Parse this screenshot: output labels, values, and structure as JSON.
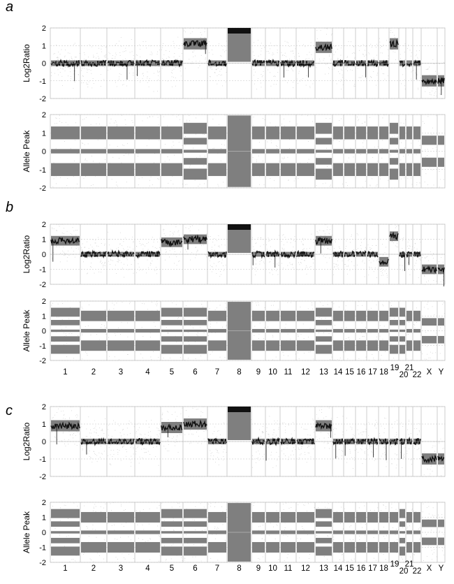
{
  "chromosomes": [
    "1",
    "2",
    "3",
    "4",
    "5",
    "6",
    "7",
    "8",
    "9",
    "10",
    "11",
    "12",
    "13",
    "14",
    "15",
    "16",
    "17",
    "18",
    "19",
    "20",
    "21",
    "22",
    "X",
    "Y"
  ],
  "chromosome_labels": [
    "1",
    "2",
    "3",
    "4",
    "5",
    "6",
    "7",
    "8",
    "9",
    "10",
    "11",
    "12",
    "13",
    "14",
    "15",
    "16",
    "17",
    "18",
    "19",
    "20",
    "21",
    "22",
    "X",
    "Y"
  ],
  "colors": {
    "data": "#111111",
    "spread": "#7f7f7f",
    "noise": "#c8c8c8",
    "grid": "#c0c0c0",
    "baseline": "#a8a8a8"
  },
  "chart_data": [
    {
      "panel": "a",
      "type": "scatter",
      "subplot": "top",
      "ylabel": "Log2Ratio",
      "ylim": [
        -2,
        2
      ],
      "yticks": [
        -2,
        -1,
        0,
        1,
        2
      ],
      "grid": true,
      "series": [
        {
          "values": [
            0,
            0,
            0,
            0,
            0,
            1.1,
            0,
            1.8,
            0,
            0,
            0,
            0,
            0.9,
            0,
            0,
            0,
            0,
            0,
            1.1,
            0,
            0,
            0,
            -1,
            -1
          ]
        }
      ]
    },
    {
      "panel": "a",
      "type": "scatter",
      "subplot": "bottom",
      "ylabel": "Allele Peak",
      "ylim": [
        -2,
        2
      ],
      "yticks": [
        -2,
        -1,
        0,
        1,
        2
      ],
      "grid": true,
      "series": [
        {
          "values": [
            "het",
            "het",
            "het",
            "het",
            "het",
            "split",
            "het",
            "wide",
            "het",
            "het",
            "het",
            "het",
            "split",
            "het",
            "het",
            "het",
            "het",
            "het",
            "split",
            "het",
            "het",
            "het",
            "hemi",
            "hemi"
          ]
        }
      ]
    },
    {
      "panel": "b",
      "type": "scatter",
      "subplot": "top",
      "ylabel": "Log2Ratio",
      "ylim": [
        -2,
        2
      ],
      "yticks": [
        -2,
        -1,
        0,
        1,
        2
      ],
      "grid": true,
      "series": [
        {
          "values": [
            0.9,
            0,
            0,
            0,
            0.8,
            1.0,
            0,
            1.8,
            0,
            0,
            0,
            0,
            0.9,
            0,
            0,
            0,
            0,
            -0.5,
            1.2,
            0,
            0,
            0,
            -1,
            -1
          ]
        }
      ]
    },
    {
      "panel": "b",
      "type": "scatter",
      "subplot": "bottom",
      "ylabel": "Allele Peak",
      "ylim": [
        -2,
        2
      ],
      "yticks": [
        -2,
        -1,
        0,
        1,
        2
      ],
      "grid": true,
      "series": [
        {
          "values": [
            "split",
            "het",
            "het",
            "het",
            "split",
            "split",
            "het",
            "wide",
            "het",
            "het",
            "het",
            "het",
            "split",
            "het",
            "het",
            "het",
            "het",
            "het",
            "split",
            "split",
            "het",
            "het",
            "hemi",
            "hemi"
          ]
        }
      ]
    },
    {
      "panel": "c",
      "type": "scatter",
      "subplot": "top",
      "ylabel": "Log2Ratio",
      "ylim": [
        -2,
        2
      ],
      "yticks": [
        -2,
        -1,
        0,
        1,
        2
      ],
      "grid": true,
      "series": [
        {
          "values": [
            0.9,
            0,
            0,
            0,
            0.8,
            1.0,
            0,
            1.8,
            0,
            0,
            0,
            0,
            0.9,
            0,
            0,
            0,
            0,
            0,
            0,
            0,
            0,
            0,
            -1,
            -1
          ]
        }
      ]
    },
    {
      "panel": "c",
      "type": "scatter",
      "subplot": "bottom",
      "ylabel": "Allele Peak",
      "ylim": [
        -2,
        2
      ],
      "yticks": [
        -2,
        -1,
        0,
        1,
        2
      ],
      "grid": true,
      "series": [
        {
          "values": [
            "split",
            "het",
            "het",
            "het",
            "split",
            "split",
            "het",
            "wide",
            "het",
            "het",
            "het",
            "het",
            "split",
            "het",
            "het",
            "het",
            "het",
            "het",
            "het",
            "split",
            "het",
            "het",
            "hemi",
            "hemi"
          ]
        }
      ]
    }
  ],
  "panel_letters": [
    "a",
    "b",
    "c"
  ]
}
